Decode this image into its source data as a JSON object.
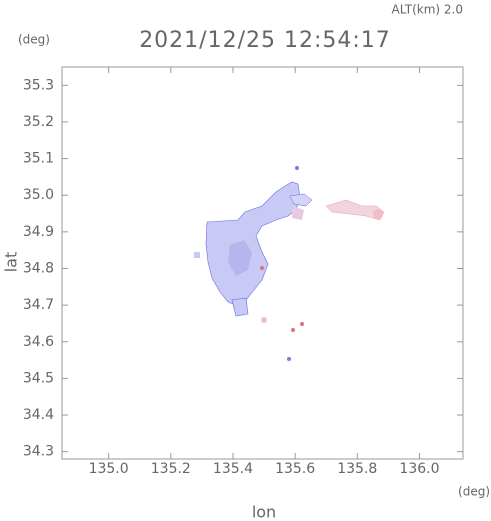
{
  "chart_data": {
    "type": "map",
    "title": "2021/12/25 12:54:17",
    "subtitle": "ALT(km) 2.0",
    "y_unit": "(deg)",
    "x_unit": "(deg)",
    "ylabel": "lat",
    "xlabel": "lon",
    "xlim": [
      134.85,
      136.14
    ],
    "ylim": [
      34.28,
      35.35
    ],
    "xticks": [
      {
        "value": 135.0,
        "label": "135.0"
      },
      135.2,
      135.4,
      135.6,
      135.8,
      {
        "value": 136.0,
        "label": "136.0"
      }
    ],
    "yticks": [
      34.3,
      34.4,
      34.5,
      34.6,
      34.7,
      34.8,
      34.9,
      {
        "value": 35.0,
        "label": "35.0"
      },
      35.1,
      35.2,
      35.3
    ]
  }
}
